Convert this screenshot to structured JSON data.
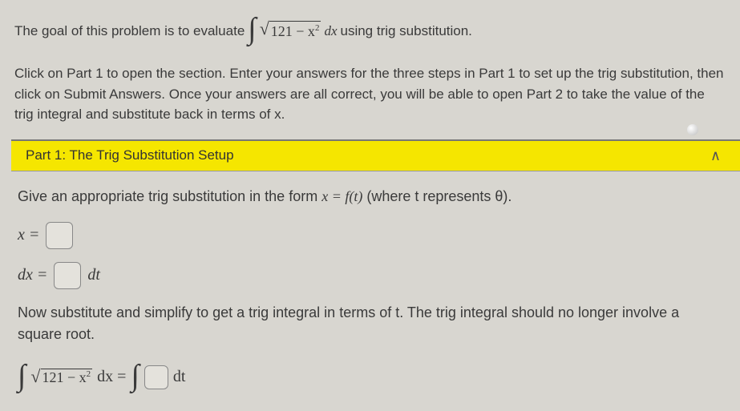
{
  "intro": {
    "prefix": "The goal of this problem is to evaluate",
    "integral_body": "121 − x",
    "integral_tail": " dx",
    "suffix": "using trig substitution."
  },
  "instructions": "Click on Part 1 to open the section. Enter your answers for the three steps in Part 1 to set up the trig substitution, then click on Submit Answers. Once your answers are all correct, you will be able to open Part 2 to take the value of the trig integral and substitute back in terms of x.",
  "part1": {
    "title": "Part 1: The Trig Substitution Setup",
    "step1": {
      "prefix": "Give an appropriate trig substitution in the form ",
      "formula": "x = f(t)",
      "suffix": " (where t represents θ)."
    },
    "x_label": "x =",
    "dx_label_left": "dx =",
    "dx_label_right": "dt",
    "step2": "Now substitute and simplify to get a trig integral in terms of t. The trig integral should no longer involve a square root.",
    "final_sqrt_body": "121 − x",
    "final_tail_left": " dx =",
    "final_tail_right": "dt"
  },
  "colors": {
    "bg": "#d8d6d0",
    "header_bg": "#f5e600",
    "text": "#3a3a3a",
    "box_border": "#888"
  }
}
